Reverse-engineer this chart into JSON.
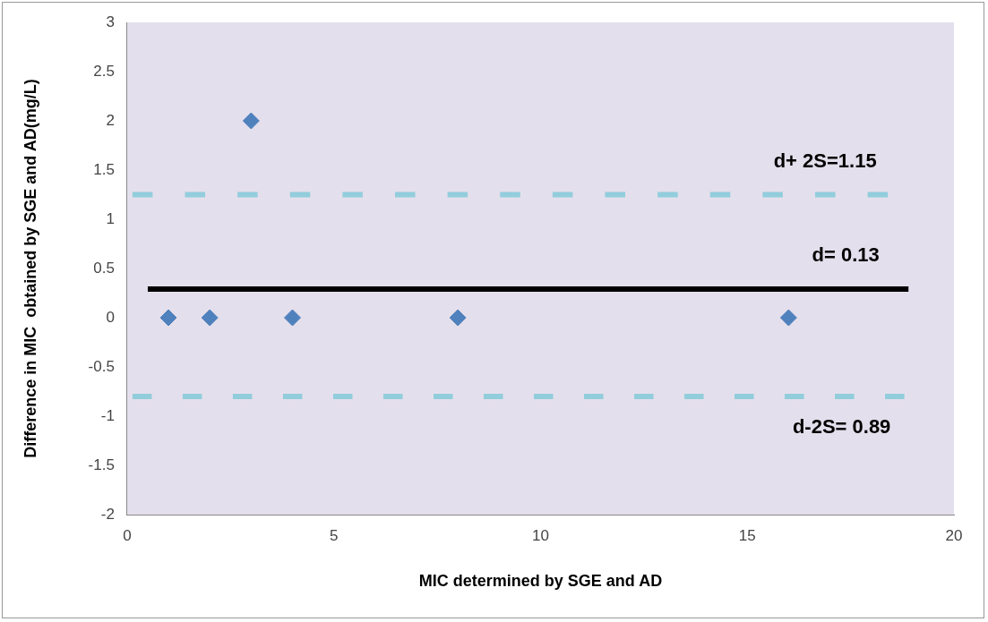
{
  "chart_data": {
    "type": "scatter",
    "xlabel": "MIC determined by SGE and AD",
    "ylabel": "Difference in MIC  obtained by SGE and AD(mg/L)",
    "xlim": [
      0,
      20
    ],
    "xticks": [
      0,
      5,
      10,
      15,
      20
    ],
    "ylim": [
      -2,
      3
    ],
    "yticks": [
      -2,
      -1.5,
      -1,
      -0.5,
      0,
      0.5,
      1,
      1.5,
      2,
      2.5,
      3
    ],
    "grid": false,
    "legend": false,
    "series": [
      {
        "type": "line",
        "name": "d+ 2S=1.15",
        "color": "#92cddc",
        "line_style": "dashed",
        "marker": "none",
        "x": [
          0.13,
          18.4
        ],
        "values": [
          1.25,
          1.25
        ]
      },
      {
        "type": "line",
        "name": "d= 0.13",
        "color": "#000000",
        "line_style": "solid",
        "marker": "none",
        "x": [
          0.5,
          18.9
        ],
        "values": [
          0.29,
          0.29
        ]
      },
      {
        "type": "line",
        "name": "d-2S= 0.89",
        "color": "#92cddc",
        "line_style": "dashed",
        "marker": "none",
        "x": [
          0.13,
          18.8
        ],
        "values": [
          -0.8,
          -0.8
        ]
      },
      {
        "color": "#4f81bd",
        "marker": "diamond",
        "x": [
          1,
          2,
          3,
          4,
          8,
          16
        ],
        "values": [
          0,
          0,
          2,
          0,
          0,
          0
        ]
      }
    ]
  }
}
